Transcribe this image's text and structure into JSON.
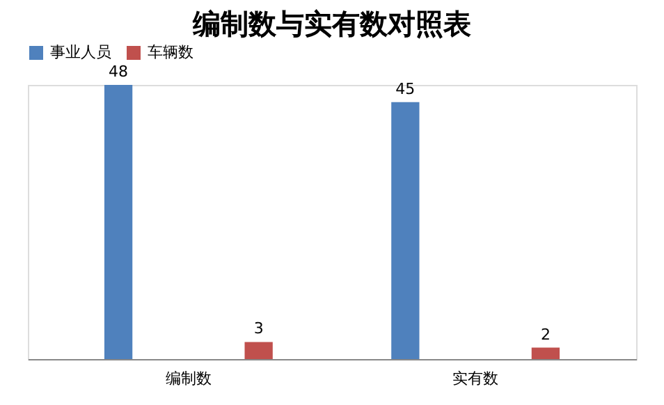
{
  "chart_data": {
    "type": "bar",
    "title": "编制数与实有数对照表",
    "categories": [
      "编制数",
      "实有数"
    ],
    "series": [
      {
        "name": "事业人员",
        "color": "#4f81bd",
        "values": [
          48,
          45
        ]
      },
      {
        "name": "车辆数",
        "color": "#c0504d",
        "values": [
          3,
          2
        ]
      }
    ],
    "data_labels": true,
    "legend": "top",
    "grid": false,
    "tick_labels": "x"
  }
}
